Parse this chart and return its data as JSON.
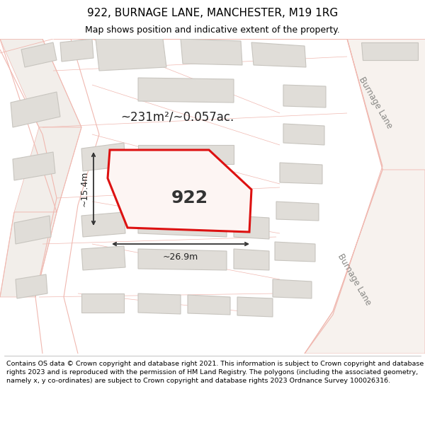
{
  "title": "922, BURNAGE LANE, MANCHESTER, M19 1RG",
  "subtitle": "Map shows position and indicative extent of the property.",
  "footer": "Contains OS data © Crown copyright and database right 2021. This information is subject to Crown copyright and database rights 2023 and is reproduced with the permission of HM Land Registry. The polygons (including the associated geometry, namely x, y co-ordinates) are subject to Crown copyright and database rights 2023 Ordnance Survey 100026316.",
  "bg_color": "#ffffff",
  "map_bg": "#f7f5f2",
  "building_fill": "#e0ddd8",
  "building_edge": "#c8c5bf",
  "road_line_color": "#f0b8b0",
  "highlight_fill": "#fdf5f3",
  "highlight_edge": "#dd1111",
  "highlight_lw": 2.2,
  "dim_color": "#222222",
  "arrow_color": "#333333",
  "label_922": "922",
  "area_label": "~231m²/~0.057ac.",
  "dim_w": "~26.9m",
  "dim_h": "~15.4m",
  "road_label": "Burnage Lane",
  "burnage_lane_color": "#f7f2ee",
  "burnage_lane_line": "#f0b8b0",
  "title_fontsize": 11,
  "subtitle_fontsize": 9,
  "footer_fontsize": 6.8,
  "label_color": "#888885"
}
